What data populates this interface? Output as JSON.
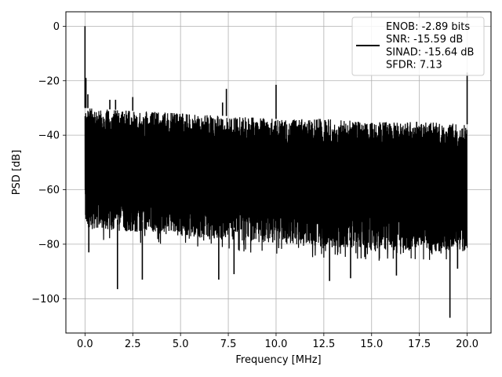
{
  "chart_data": {
    "type": "line",
    "xlabel": "Frequency [MHz]",
    "ylabel": "PSD [dB]",
    "xlim": [
      -1,
      21.25
    ],
    "ylim": [
      -112.6,
      5.3
    ],
    "x_ticks": [
      0,
      2.5,
      5,
      7.5,
      10,
      12.5,
      15,
      17.5,
      20
    ],
    "x_tick_labels": [
      "0.0",
      "2.5",
      "5.0",
      "7.5",
      "10.0",
      "12.5",
      "15.0",
      "17.5",
      "20.0"
    ],
    "y_ticks": [
      0,
      -20,
      -40,
      -60,
      -80,
      -100
    ],
    "y_tick_labels": [
      "0",
      "−20",
      "−40",
      "−60",
      "−80",
      "−100"
    ],
    "grid": true,
    "legend_position": "top-right",
    "series": [
      {
        "name": "ENOB: -2.89 bits\nSNR: -15.59 dB\nSINAD: -15.64 dB\nSFDR: 7.13",
        "color": "#000000",
        "x_range": [
          0,
          20
        ],
        "envelope": {
          "upper": [
            [
              0,
              -30
            ],
            [
              2.5,
              -31
            ],
            [
              5,
              -32
            ],
            [
              7.5,
              -33
            ],
            [
              10,
              -34
            ],
            [
              12.5,
              -34
            ],
            [
              15,
              -35
            ],
            [
              17.5,
              -35
            ],
            [
              20,
              -36
            ]
          ],
          "typical_low": [
            [
              0,
              -70
            ],
            [
              5,
              -73
            ],
            [
              10,
              -76
            ],
            [
              15,
              -78
            ],
            [
              20,
              -79
            ]
          ]
        },
        "spurs": [
          {
            "x": 0.0,
            "y": 0
          },
          {
            "x": 0.05,
            "y": -19
          },
          {
            "x": 0.15,
            "y": -25
          },
          {
            "x": 1.3,
            "y": -27
          },
          {
            "x": 1.6,
            "y": -27
          },
          {
            "x": 2.5,
            "y": -26
          },
          {
            "x": 7.2,
            "y": -28
          },
          {
            "x": 7.4,
            "y": -23
          },
          {
            "x": 10.0,
            "y": -21.5
          },
          {
            "x": 20.0,
            "y": -17
          }
        ],
        "dips": [
          {
            "x": 0.2,
            "y": -83
          },
          {
            "x": 1.7,
            "y": -96.5
          },
          {
            "x": 3.0,
            "y": -93
          },
          {
            "x": 7.0,
            "y": -93
          },
          {
            "x": 7.8,
            "y": -91
          },
          {
            "x": 12.8,
            "y": -93.5
          },
          {
            "x": 13.9,
            "y": -92.5
          },
          {
            "x": 16.3,
            "y": -91.5
          },
          {
            "x": 19.1,
            "y": -107
          },
          {
            "x": 19.5,
            "y": -89
          }
        ]
      }
    ]
  }
}
